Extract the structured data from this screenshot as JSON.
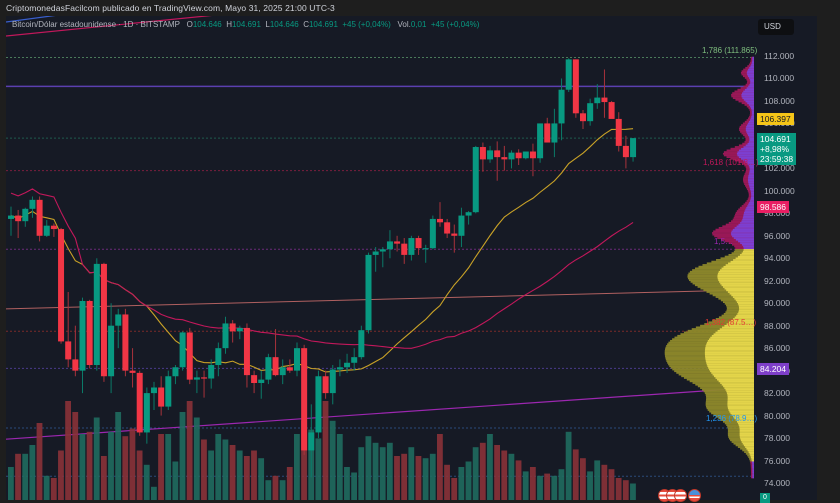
{
  "header": {
    "published": "CriptomonedasFacilcom publicado en TradingView.com, Mayo 31, 2025 21:00 UTC-3"
  },
  "legend": {
    "symbol": "Bitcoin/Dólar estadounidense · 1D · BITSTAMP",
    "o_label": "O",
    "o": "104.646",
    "h_label": "H",
    "h": "104.691",
    "l_label": "L",
    "l": "104.646",
    "c_label": "C",
    "c": "104.691",
    "change": "+45 (+0,04%)",
    "vol_label": "Vol.",
    "vol": "0,01",
    "vol_change": "+45 (+0,04%)"
  },
  "currency_button": "USD",
  "price_axis": [
    "112.000",
    "110.000",
    "108.000",
    "106.000",
    "104.000",
    "102.000",
    "100.000",
    "98.000",
    "96.000",
    "94.000",
    "92.000",
    "90.000",
    "88.000",
    "86.000",
    "84.000",
    "82.000",
    "80.000",
    "78.000",
    "76.000",
    "74.000"
  ],
  "price_tags": {
    "ma_yellow": {
      "value": "106.397",
      "color": "#f5c518"
    },
    "last": {
      "value": "104.691",
      "change": "+8,98%",
      "countdown": "23:59:38",
      "color": "#089981"
    },
    "ma_pink": {
      "value": "98.586",
      "color": "#e91e63"
    },
    "poc": {
      "value": "84.204",
      "color": "#7e3fc9"
    },
    "volume_tag": {
      "value": "0",
      "color": "#089981"
    }
  },
  "fib_labels": [
    {
      "text": "1,786 (111.865)",
      "color": "#7fbf7f"
    },
    {
      "text": "1,618 (101.8…)",
      "color": "#c2185b"
    },
    {
      "text": "1,5…",
      "color": "#9c27b0"
    },
    {
      "text": "1,382 (87.5…)",
      "color": "#e53935"
    },
    {
      "text": "1,236 (78.9…)",
      "color": "#2196f3"
    }
  ],
  "colors": {
    "up": "#089981",
    "down": "#f23645",
    "bg": "#161a25",
    "ma_fast": "#c9a227",
    "ma_slow": "#c2185b"
  },
  "chart_data": {
    "type": "candlestick",
    "title": "Bitcoin/Dólar estadounidense · 1D · BITSTAMP",
    "ylabel": "USD (thousands)",
    "ylim": [
      74,
      112
    ],
    "last_close": 104.691,
    "ohlc_approx": [
      [
        97.5,
        98.6,
        96.0,
        97.8
      ],
      [
        97.8,
        98.3,
        95.8,
        97.3
      ],
      [
        97.3,
        98.5,
        96.8,
        98.4
      ],
      [
        98.4,
        99.5,
        97.6,
        99.2
      ],
      [
        99.2,
        99.5,
        95.5,
        96.0
      ],
      [
        96.0,
        97.4,
        95.9,
        96.9
      ],
      [
        96.9,
        97.1,
        95.9,
        96.6
      ],
      [
        96.6,
        96.7,
        86.4,
        86.6
      ],
      [
        86.6,
        91.0,
        84.3,
        85.0
      ],
      [
        85.0,
        88.0,
        83.5,
        84.0
      ],
      [
        84.0,
        90.5,
        82.0,
        90.2
      ],
      [
        90.2,
        90.3,
        84.2,
        84.5
      ],
      [
        84.5,
        94.0,
        84.0,
        93.5
      ],
      [
        93.5,
        93.6,
        83.0,
        83.5
      ],
      [
        83.5,
        90.0,
        82.0,
        88.0
      ],
      [
        88.0,
        89.5,
        86.0,
        89.0
      ],
      [
        89.0,
        89.5,
        83.5,
        84.0
      ],
      [
        84.0,
        86.0,
        82.5,
        83.8
      ],
      [
        83.8,
        84.0,
        78.2,
        78.5
      ],
      [
        78.5,
        82.5,
        77.5,
        82.0
      ],
      [
        82.0,
        83.0,
        80.5,
        82.5
      ],
      [
        82.5,
        83.5,
        80.0,
        80.8
      ],
      [
        80.8,
        84.0,
        80.5,
        83.5
      ],
      [
        83.5,
        84.5,
        82.8,
        84.3
      ],
      [
        84.3,
        87.5,
        84.0,
        87.4
      ],
      [
        87.4,
        87.8,
        82.8,
        83.2
      ],
      [
        83.2,
        84.0,
        82.0,
        83.4
      ],
      [
        83.4,
        84.0,
        81.6,
        83.3
      ],
      [
        83.3,
        85.0,
        82.4,
        84.5
      ],
      [
        84.5,
        86.5,
        83.5,
        86.0
      ],
      [
        86.0,
        88.8,
        85.5,
        88.2
      ],
      [
        88.2,
        88.5,
        86.5,
        87.5
      ],
      [
        87.5,
        88.0,
        86.8,
        87.8
      ],
      [
        87.8,
        88.2,
        82.5,
        83.6
      ],
      [
        83.6,
        84.0,
        82.0,
        82.9
      ],
      [
        82.9,
        84.0,
        81.5,
        83.2
      ],
      [
        83.2,
        85.5,
        82.8,
        85.2
      ],
      [
        85.2,
        87.7,
        83.5,
        83.6
      ],
      [
        83.6,
        85.0,
        82.8,
        84.3
      ],
      [
        84.3,
        85.0,
        83.8,
        84.0
      ],
      [
        84.0,
        86.5,
        83.5,
        86.0
      ],
      [
        86.0,
        86.3,
        76.5,
        76.9
      ],
      [
        76.9,
        81.0,
        74.5,
        78.5
      ],
      [
        78.5,
        84.0,
        78.0,
        83.5
      ],
      [
        83.5,
        84.0,
        81.5,
        82.0
      ],
      [
        82.0,
        84.5,
        81.0,
        84.1
      ],
      [
        84.1,
        85.0,
        83.5,
        84.3
      ],
      [
        84.3,
        85.5,
        83.8,
        84.7
      ],
      [
        84.7,
        86.0,
        84.0,
        85.2
      ],
      [
        85.2,
        88.0,
        85.0,
        87.6
      ],
      [
        87.6,
        94.5,
        87.3,
        94.3
      ],
      [
        94.3,
        95.0,
        92.8,
        94.6
      ],
      [
        94.6,
        95.0,
        93.2,
        94.8
      ],
      [
        94.8,
        96.5,
        94.0,
        95.5
      ],
      [
        95.5,
        96.0,
        94.6,
        95.3
      ],
      [
        95.3,
        95.8,
        93.5,
        94.3
      ],
      [
        94.3,
        96.0,
        93.8,
        95.8
      ],
      [
        95.8,
        96.0,
        94.3,
        94.9
      ],
      [
        94.9,
        95.2,
        93.6,
        94.9
      ],
      [
        94.9,
        97.8,
        94.8,
        97.5
      ],
      [
        97.5,
        99.0,
        96.8,
        97.2
      ],
      [
        97.2,
        97.5,
        95.8,
        96.2
      ],
      [
        96.2,
        97.0,
        94.5,
        96.0
      ],
      [
        96.0,
        98.5,
        95.0,
        97.8
      ],
      [
        97.8,
        98.2,
        97.0,
        98.1
      ],
      [
        98.1,
        104.0,
        98.0,
        103.9
      ],
      [
        103.9,
        104.3,
        101.7,
        102.8
      ],
      [
        102.8,
        104.0,
        102.5,
        103.6
      ],
      [
        103.6,
        104.4,
        100.9,
        103.0
      ],
      [
        103.0,
        104.0,
        101.8,
        102.8
      ],
      [
        102.8,
        103.6,
        102.0,
        103.4
      ],
      [
        103.4,
        103.7,
        102.3,
        102.9
      ],
      [
        102.9,
        103.5,
        102.8,
        103.5
      ],
      [
        103.5,
        104.2,
        101.3,
        102.9
      ],
      [
        102.9,
        106.0,
        102.5,
        106.0
      ],
      [
        106.0,
        106.5,
        104.5,
        104.3
      ],
      [
        104.3,
        107.3,
        103.0,
        106.0
      ],
      [
        106.0,
        110.0,
        104.5,
        109.0
      ],
      [
        109.0,
        111.8,
        108.8,
        111.7
      ],
      [
        111.7,
        111.7,
        106.5,
        106.9
      ],
      [
        106.9,
        107.2,
        105.5,
        106.2
      ],
      [
        106.2,
        108.2,
        105.8,
        107.8
      ],
      [
        107.8,
        109.5,
        107.3,
        108.3
      ],
      [
        108.3,
        110.8,
        106.5,
        107.9
      ],
      [
        107.9,
        108.0,
        106.5,
        106.4
      ],
      [
        106.4,
        107.0,
        103.5,
        104.0
      ],
      [
        104.0,
        104.9,
        102.0,
        103.0
      ],
      [
        103.0,
        104.7,
        102.6,
        104.69
      ]
    ],
    "moving_averages": [
      {
        "name": "MA fast (yellow)",
        "last": 106.397
      },
      {
        "name": "MA slow (pink)",
        "last": 98.586
      }
    ],
    "fibonacci_levels": [
      {
        "ratio": 1.786,
        "price": 111.865
      },
      {
        "ratio": 1.618,
        "price": 101.8
      },
      {
        "ratio": 1.5,
        "price": 94.8
      },
      {
        "ratio": 1.382,
        "price": 87.5
      },
      {
        "ratio": 1.236,
        "price": 78.9
      }
    ],
    "volume_profile": {
      "poc": 84.204,
      "value_area": [
        76,
        94.8
      ]
    },
    "grid": false,
    "legend_position": "top-left"
  }
}
